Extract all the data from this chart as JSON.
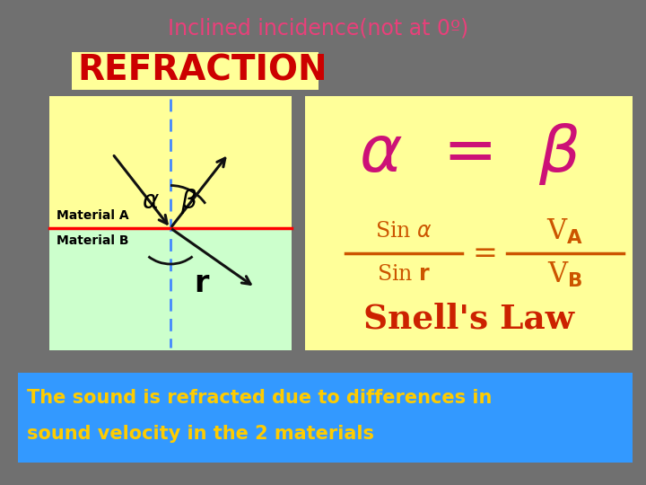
{
  "bg_color": "#707070",
  "title_text": "Inclined incidence(not at 0º)",
  "title_color": "#e8407a",
  "subtitle_text": "REFRACTION",
  "subtitle_color": "#cc0000",
  "subtitle_bg": "#ffff99",
  "diagram_bg_top": "#ffff99",
  "diagram_bg_bottom": "#ccffcc",
  "formula_bg": "#ffff99",
  "bottom_bar_color": "#3399ff",
  "bottom_text_line1": "The sound is refracted due to differences in",
  "bottom_text_line2": "sound velocity in the 2 materials",
  "bottom_text_color": "#ffcc00",
  "snells_law_color": "#cc2200",
  "formula_color": "#cc5500",
  "alpha_beta_eq_color": "#cc1177",
  "material_label_color": "#000000",
  "arrow_color": "#111111",
  "arc_color": "#111111"
}
